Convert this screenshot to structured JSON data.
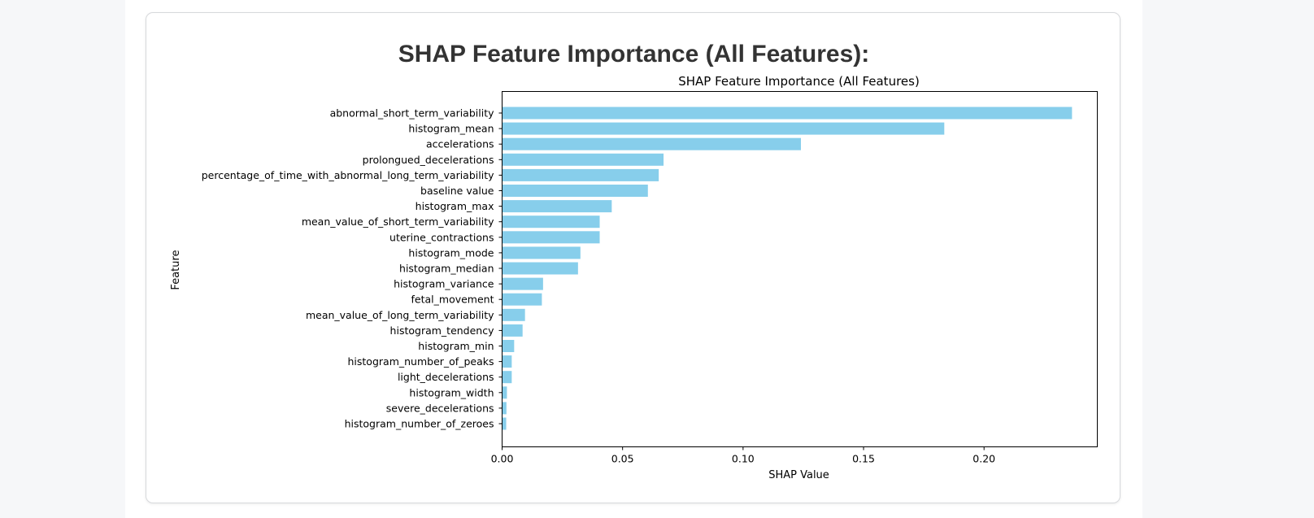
{
  "card": {
    "title": "SHAP Feature Importance (All Features):"
  },
  "colors": {
    "bar": "#87ceeb",
    "axis": "#000000"
  },
  "chart_data": {
    "type": "bar",
    "orientation": "horizontal",
    "title": "SHAP Feature Importance (All Features)",
    "xlabel": "SHAP Value",
    "ylabel": "Feature",
    "xlim": [
      0,
      0.247
    ],
    "xticks": [
      "0.00",
      "0.05",
      "0.10",
      "0.15",
      "0.20"
    ],
    "grid": false,
    "legend": "none",
    "categories": [
      "abnormal_short_term_variability",
      "histogram_mean",
      "accelerations",
      "prolongued_decelerations",
      "percentage_of_time_with_abnormal_long_term_variability",
      "baseline value",
      "histogram_max",
      "mean_value_of_short_term_variability",
      "uterine_contractions",
      "histogram_mode",
      "histogram_median",
      "histogram_variance",
      "fetal_movement",
      "mean_value_of_long_term_variability",
      "histogram_tendency",
      "histogram_min",
      "histogram_number_of_peaks",
      "light_decelerations",
      "histogram_width",
      "severe_decelerations",
      "histogram_number_of_zeroes"
    ],
    "values": [
      0.2365,
      0.1835,
      0.124,
      0.067,
      0.065,
      0.0605,
      0.0455,
      0.0405,
      0.0405,
      0.0325,
      0.0315,
      0.017,
      0.0165,
      0.0095,
      0.0085,
      0.005,
      0.004,
      0.004,
      0.002,
      0.0018,
      0.0017
    ]
  }
}
